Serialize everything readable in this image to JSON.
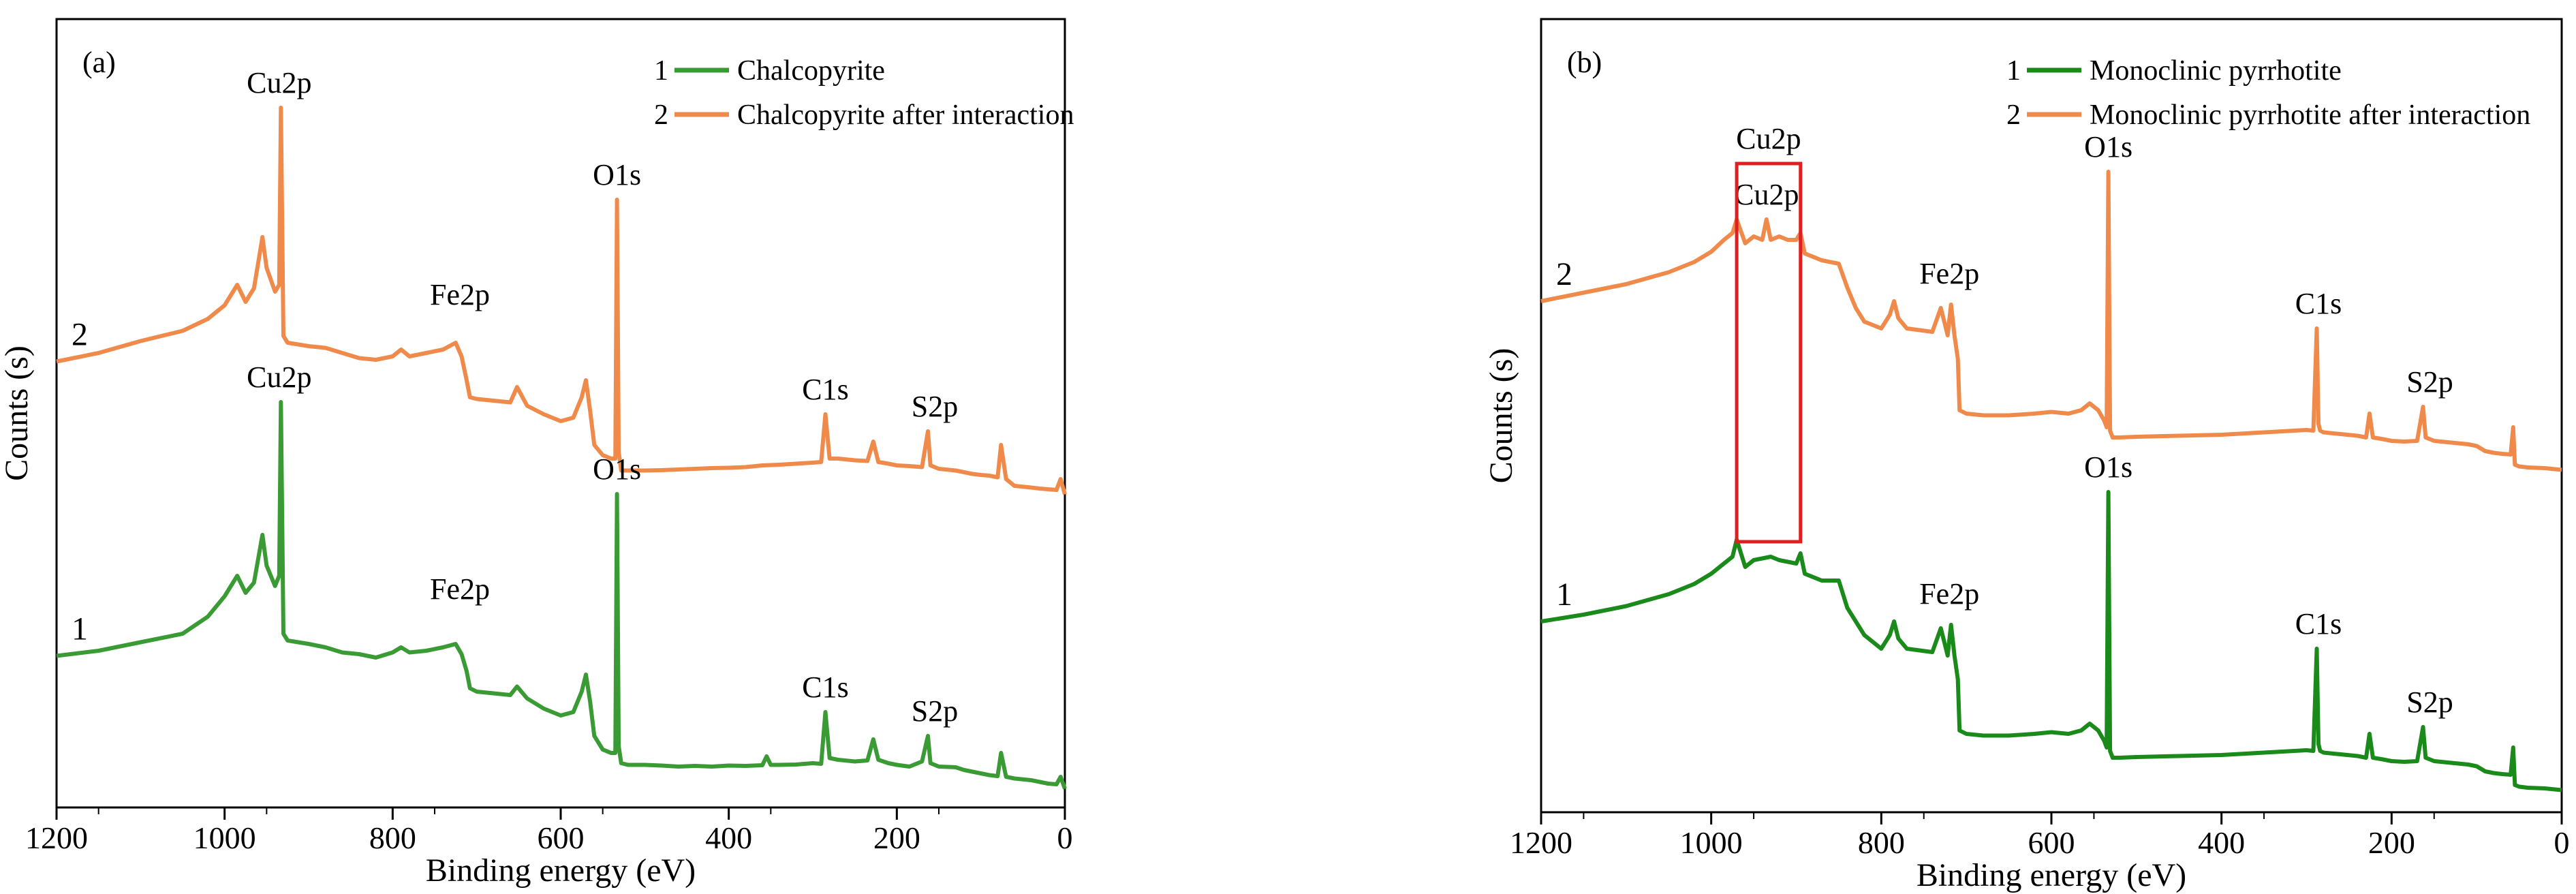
{
  "chart_data": [
    {
      "type": "line",
      "panel_label": "(a)",
      "xlabel": "Binding energy (eV)",
      "ylabel": "Counts (s)",
      "xlim": [
        1200,
        0
      ],
      "x_ticks": [
        "1200",
        "1000",
        "800",
        "600",
        "400",
        "200",
        "0"
      ],
      "x_tick_values": [
        1200,
        1000,
        800,
        600,
        400,
        200,
        0
      ],
      "legend": {
        "placement": "top-right",
        "entries": [
          {
            "num": "1",
            "name": "Chalcopyrite",
            "color": "#3a9b35"
          },
          {
            "num": "2",
            "name": "Chalcopyrite after interaction",
            "color": "#f08a4b"
          }
        ]
      },
      "series": [
        {
          "id": "1",
          "name": "Chalcopyrite",
          "color": "#3a9b35",
          "x": [
            1200,
            1150,
            1100,
            1050,
            1020,
            1000,
            985,
            975,
            965,
            955,
            950,
            940,
            935,
            933,
            930,
            925,
            900,
            880,
            860,
            840,
            820,
            800,
            790,
            780,
            760,
            740,
            725,
            718,
            712,
            708,
            700,
            680,
            660,
            652,
            640,
            620,
            600,
            585,
            575,
            570,
            565,
            560,
            550,
            540,
            535,
            533,
            531,
            528,
            520,
            500,
            480,
            460,
            440,
            420,
            400,
            380,
            360,
            355,
            350,
            340,
            320,
            300,
            290,
            285,
            280,
            270,
            250,
            235,
            228,
            222,
            210,
            200,
            185,
            170,
            163,
            160,
            150,
            130,
            120,
            110,
            100,
            90,
            80,
            76,
            70,
            60,
            40,
            30,
            20,
            10,
            5,
            0
          ],
          "y": [
            40.5,
            42.0,
            44.5,
            47.0,
            52.0,
            58.0,
            64.0,
            59.0,
            62.0,
            76.0,
            67.0,
            61.0,
            64.0,
            115.0,
            47.0,
            45.0,
            44.0,
            43.0,
            41.5,
            41.0,
            40.0,
            41.5,
            43.0,
            41.5,
            42.0,
            43.0,
            44.0,
            41.0,
            36.0,
            31.0,
            30.0,
            29.5,
            29.0,
            31.5,
            28.0,
            25.0,
            23.0,
            24.0,
            30.0,
            35.0,
            27.0,
            17.0,
            13.0,
            12.0,
            12.0,
            88.0,
            14.0,
            9.0,
            8.5,
            8.5,
            8.3,
            8.0,
            8.2,
            8.0,
            8.3,
            8.2,
            8.4,
            11.0,
            8.5,
            8.5,
            8.6,
            9.0,
            8.8,
            24.0,
            10.5,
            10.0,
            9.5,
            9.8,
            16.0,
            10.0,
            9.0,
            8.5,
            8.0,
            9.5,
            17.0,
            9.0,
            8.0,
            7.8,
            7.0,
            6.5,
            6.0,
            5.5,
            5.2,
            12.0,
            5.0,
            4.5,
            4.0,
            3.5,
            3.0,
            2.8,
            5.0,
            1.5
          ]
        },
        {
          "id": "2",
          "name": "Chalcopyrite after interaction",
          "color": "#f08a4b",
          "x": [
            1200,
            1150,
            1100,
            1050,
            1020,
            1000,
            985,
            975,
            965,
            955,
            950,
            940,
            935,
            933,
            930,
            925,
            900,
            880,
            860,
            840,
            820,
            800,
            790,
            780,
            760,
            740,
            725,
            718,
            712,
            708,
            700,
            680,
            660,
            652,
            640,
            620,
            600,
            585,
            575,
            570,
            565,
            560,
            550,
            540,
            535,
            533,
            531,
            528,
            520,
            500,
            480,
            460,
            440,
            420,
            400,
            380,
            360,
            340,
            320,
            300,
            290,
            285,
            280,
            270,
            250,
            235,
            228,
            222,
            210,
            200,
            185,
            170,
            163,
            160,
            150,
            130,
            120,
            110,
            100,
            90,
            80,
            76,
            70,
            60,
            40,
            30,
            20,
            10,
            5,
            0
          ],
          "y": [
            40.5,
            43.0,
            46.5,
            49.5,
            53.0,
            57.0,
            63.0,
            58.0,
            62.0,
            77.0,
            68.0,
            61.0,
            63.0,
            115.0,
            48.0,
            46.0,
            45.0,
            44.5,
            43.0,
            41.5,
            41.0,
            42.0,
            44.0,
            42.0,
            43.0,
            44.0,
            46.0,
            42.0,
            35.0,
            30.0,
            29.5,
            29.0,
            28.5,
            33.0,
            27.5,
            25.0,
            23.0,
            24.0,
            30.0,
            35.0,
            26.0,
            16.0,
            13.0,
            12.0,
            12.0,
            88.0,
            14.0,
            8.5,
            8.5,
            8.5,
            8.6,
            8.8,
            9.0,
            9.2,
            9.3,
            9.5,
            10.0,
            10.2,
            10.5,
            10.8,
            11.0,
            25.0,
            12.0,
            12.0,
            11.5,
            11.3,
            17.0,
            11.0,
            10.5,
            10.0,
            9.8,
            9.5,
            20.0,
            10.0,
            9.0,
            8.5,
            8.0,
            7.5,
            7.2,
            7.0,
            6.5,
            16.0,
            6.0,
            4.0,
            3.5,
            3.2,
            3.0,
            2.8,
            6.0,
            1.5
          ]
        }
      ],
      "annotations": [
        {
          "text": "Cu2p",
          "series": "2",
          "x": 935
        },
        {
          "text": "Fe2p",
          "series": "2",
          "x": 720
        },
        {
          "text": "O1s",
          "series": "2",
          "x": 533
        },
        {
          "text": "C1s",
          "series": "2",
          "x": 285
        },
        {
          "text": "S2p",
          "series": "2",
          "x": 163
        },
        {
          "text": "Cu2p",
          "series": "1",
          "x": 935
        },
        {
          "text": "Fe2p",
          "series": "1",
          "x": 720
        },
        {
          "text": "O1s",
          "series": "1",
          "x": 533
        },
        {
          "text": "C1s",
          "series": "1",
          "x": 285
        },
        {
          "text": "S2p",
          "series": "1",
          "x": 163
        }
      ],
      "curve_labels": [
        "2",
        "1"
      ]
    },
    {
      "type": "line",
      "panel_label": "(b)",
      "xlabel": "Binding energy (eV)",
      "ylabel": "Counts (s)",
      "xlim": [
        1200,
        0
      ],
      "x_ticks": [
        "1200",
        "1000",
        "800",
        "600",
        "400",
        "200",
        "0"
      ],
      "x_tick_values": [
        1200,
        1000,
        800,
        600,
        400,
        200,
        0
      ],
      "legend": {
        "placement": "top-right",
        "entries": [
          {
            "num": "1",
            "name": "Monoclinic pyrrhotite",
            "color": "#1a8a1a"
          },
          {
            "num": "2",
            "name": "Monoclinic pyrrhotite after interaction",
            "color": "#f08a4b"
          }
        ]
      },
      "highlight_box": {
        "x_range": [
          970,
          895
        ],
        "color": "#e02020",
        "label": "Cu2p"
      },
      "series": [
        {
          "id": "1",
          "name": "Monoclinic pyrrhotite",
          "color": "#1a8a1a",
          "x": [
            1200,
            1150,
            1100,
            1050,
            1020,
            1000,
            985,
            975,
            970,
            960,
            950,
            940,
            930,
            920,
            910,
            900,
            895,
            890,
            870,
            850,
            840,
            830,
            820,
            800,
            790,
            785,
            780,
            770,
            740,
            730,
            725,
            722,
            718,
            714,
            710,
            708,
            700,
            680,
            650,
            620,
            600,
            580,
            565,
            555,
            545,
            538,
            535,
            533,
            531,
            528,
            520,
            500,
            450,
            400,
            350,
            300,
            292,
            288,
            286,
            284,
            280,
            260,
            240,
            230,
            226,
            222,
            210,
            200,
            185,
            170,
            163,
            160,
            150,
            130,
            110,
            100,
            90,
            80,
            70,
            60,
            57,
            55,
            50,
            40,
            20,
            0
          ],
          "y": [
            52.0,
            54.0,
            56.5,
            60.0,
            63.0,
            66.0,
            69.0,
            71.0,
            76.0,
            68.0,
            70.0,
            70.5,
            71.0,
            70.0,
            69.5,
            69.0,
            72.0,
            66.0,
            64.0,
            64.0,
            56.0,
            52.0,
            48.0,
            44.0,
            48.0,
            52.0,
            47.0,
            44.0,
            43.0,
            50.0,
            45.0,
            42.0,
            51.0,
            42.0,
            35.0,
            20.0,
            19.0,
            18.5,
            18.5,
            19.0,
            19.5,
            19.0,
            20.0,
            22.0,
            20.0,
            17.0,
            15.0,
            90.0,
            14.0,
            12.0,
            12.0,
            12.2,
            12.5,
            12.8,
            13.5,
            14.2,
            14.0,
            44.0,
            16.0,
            14.0,
            13.5,
            13.0,
            12.5,
            12.0,
            19.0,
            12.0,
            11.5,
            11.0,
            10.8,
            11.0,
            21.0,
            12.0,
            11.0,
            10.5,
            10.0,
            9.5,
            8.0,
            7.5,
            7.2,
            7.0,
            15.0,
            4.0,
            3.5,
            3.2,
            3.0,
            2.5
          ]
        },
        {
          "id": "2",
          "name": "Monoclinic pyrrhotite after interaction",
          "color": "#f08a4b",
          "x": [
            1200,
            1150,
            1100,
            1050,
            1020,
            1000,
            985,
            975,
            970,
            960,
            950,
            940,
            935,
            930,
            920,
            910,
            900,
            895,
            890,
            870,
            850,
            840,
            830,
            820,
            800,
            790,
            785,
            780,
            770,
            740,
            730,
            725,
            722,
            718,
            714,
            710,
            708,
            700,
            680,
            650,
            620,
            600,
            580,
            565,
            555,
            545,
            538,
            535,
            533,
            531,
            528,
            520,
            500,
            450,
            400,
            350,
            300,
            292,
            288,
            286,
            284,
            280,
            260,
            240,
            230,
            226,
            222,
            210,
            200,
            185,
            170,
            163,
            160,
            150,
            130,
            110,
            100,
            90,
            80,
            70,
            60,
            57,
            55,
            50,
            40,
            20,
            0
          ],
          "y": [
            52.0,
            54.5,
            57.0,
            60.5,
            63.5,
            66.5,
            70.0,
            72.0,
            76.0,
            69.0,
            71.0,
            70.0,
            76.0,
            70.0,
            71.0,
            70.0,
            70.0,
            72.0,
            66.0,
            64.0,
            63.0,
            56.0,
            50.0,
            46.0,
            44.0,
            48.0,
            52.0,
            47.0,
            44.0,
            43.0,
            50.0,
            45.0,
            42.0,
            51.0,
            42.0,
            35.0,
            20.0,
            19.0,
            18.5,
            18.5,
            19.0,
            19.5,
            19.0,
            20.0,
            22.0,
            20.0,
            17.0,
            15.0,
            90.0,
            14.0,
            12.0,
            12.0,
            12.2,
            12.5,
            12.8,
            13.5,
            14.2,
            14.0,
            44.0,
            16.0,
            14.0,
            13.5,
            13.0,
            12.5,
            12.0,
            19.0,
            12.0,
            11.5,
            11.0,
            10.8,
            11.0,
            21.0,
            12.0,
            11.0,
            10.5,
            10.0,
            9.5,
            8.0,
            7.5,
            7.2,
            7.0,
            15.0,
            4.0,
            3.5,
            3.2,
            3.0,
            2.5
          ]
        }
      ],
      "annotations": [
        {
          "text": "Cu2p",
          "series": "2",
          "x": 935
        },
        {
          "text": "Fe2p",
          "series": "2",
          "x": 720
        },
        {
          "text": "O1s",
          "series": "2",
          "x": 533
        },
        {
          "text": "C1s",
          "series": "2",
          "x": 286
        },
        {
          "text": "S2p",
          "series": "2",
          "x": 163
        },
        {
          "text": "Fe2p",
          "series": "1",
          "x": 720
        },
        {
          "text": "O1s",
          "series": "1",
          "x": 533
        },
        {
          "text": "C1s",
          "series": "1",
          "x": 286
        },
        {
          "text": "S2p",
          "series": "1",
          "x": 163
        }
      ],
      "curve_labels": [
        "2",
        "1"
      ]
    }
  ]
}
